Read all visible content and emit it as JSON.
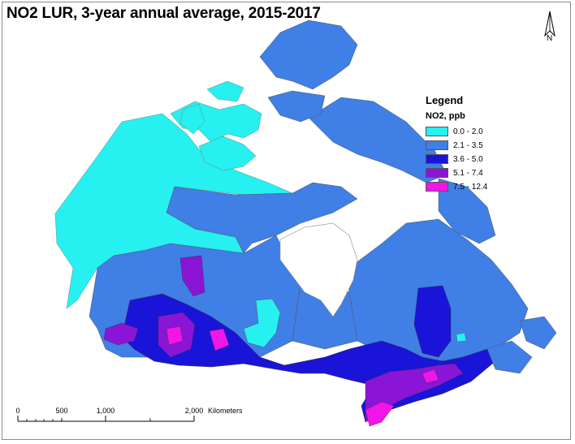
{
  "title": "NO2 LUR, 3-year annual average, 2015-2017",
  "north_arrow": {
    "label": "N",
    "icon": "north-arrow-icon"
  },
  "legend": {
    "heading": "Legend",
    "subheading": "NO2, ppb",
    "classes": [
      {
        "label": "0.0 - 2.0",
        "color": "#26f0f0"
      },
      {
        "label": "2.1 - 3.5",
        "color": "#3f7fe6"
      },
      {
        "label": "3.6 - 5.0",
        "color": "#1a14d9"
      },
      {
        "label": "5.1 - 7.4",
        "color": "#8a15d6"
      },
      {
        "label": "7.5 - 12.4",
        "color": "#f215e8"
      }
    ]
  },
  "scale_bar": {
    "ticks": [
      "0",
      "500",
      "1,000",
      "2,000"
    ],
    "units": "Kilometers"
  }
}
